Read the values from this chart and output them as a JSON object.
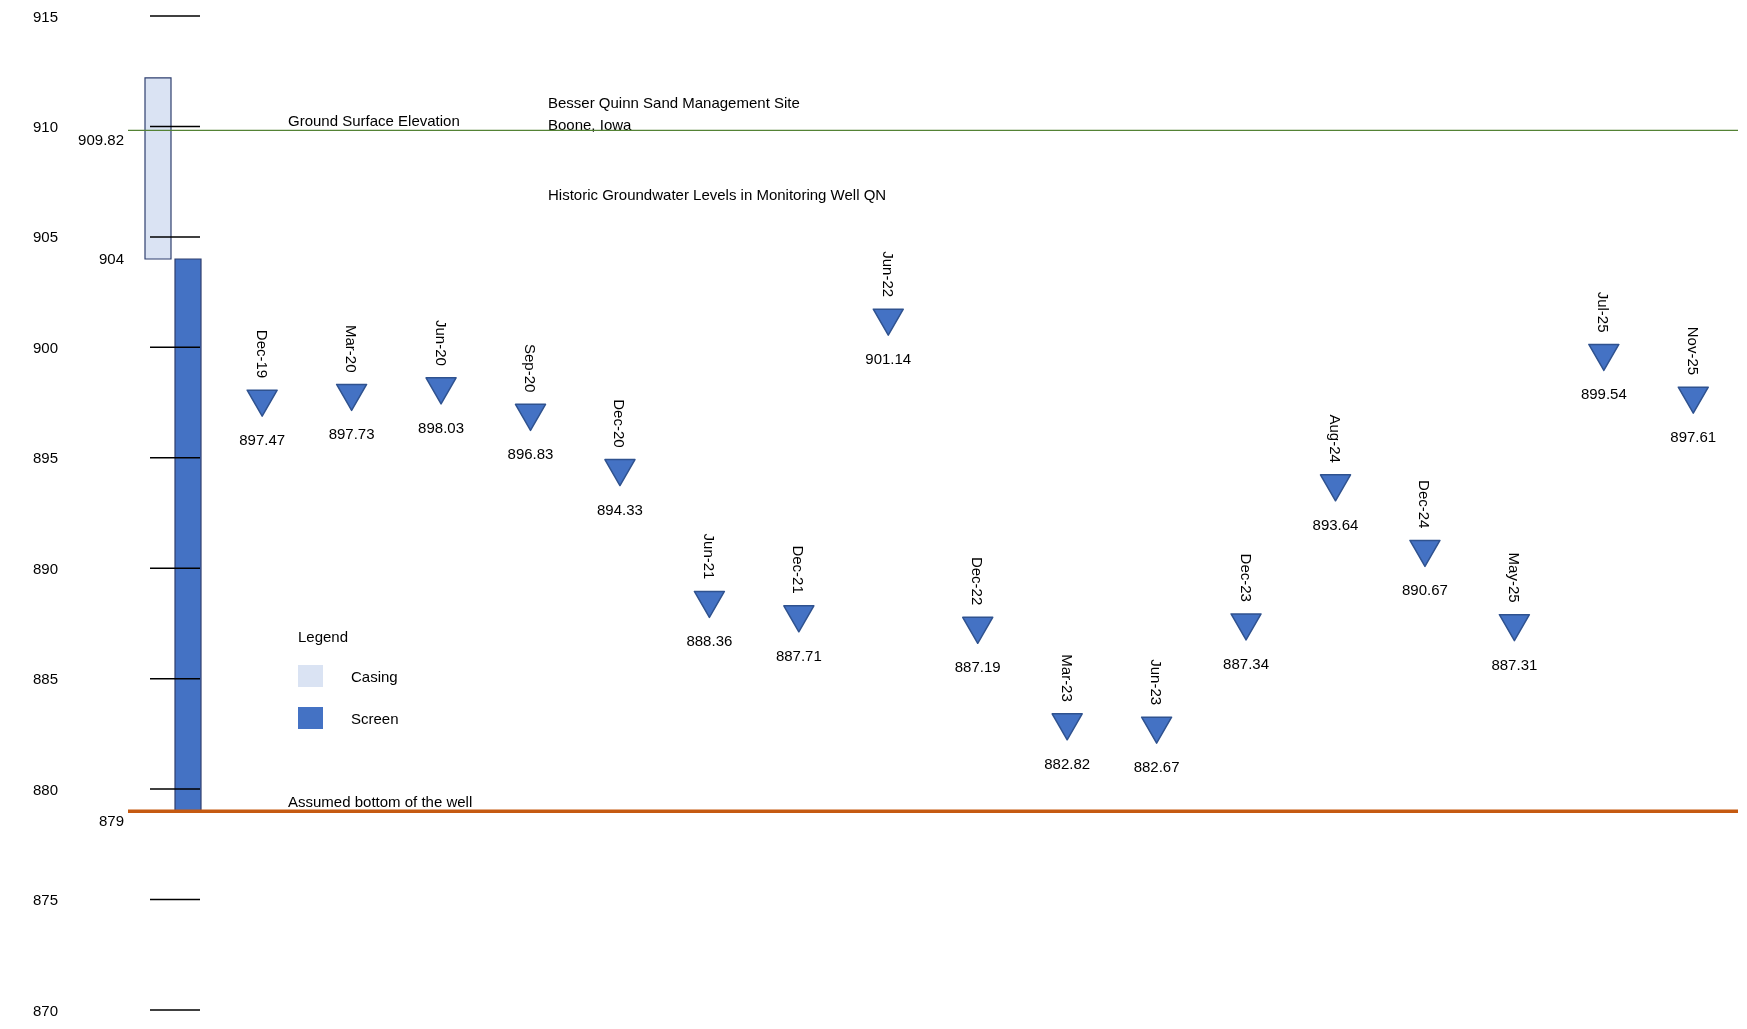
{
  "chart_data": {
    "type": "scatter",
    "title": "Besser Quinn Sand Management Site",
    "subtitle": "Boone, Iowa",
    "annotations": [
      "Historic Groundwater Levels in Monitoring Well QN",
      {
        "text": "Ground Surface Elevation",
        "y": 909.82
      },
      "904",
      {
        "text": "Assumed bottom of the well",
        "y": 879
      }
    ],
    "categories": [
      null,
      "Dec-19",
      "Mar-20",
      "Jun-20",
      "Sep-20",
      "Dec-20",
      "Jun-21",
      "Dec-21",
      "Jun-22",
      "Dec-22",
      "Mar-23",
      "Jun-23",
      "Dec-23",
      "Aug-24",
      "Dec-24",
      "May-25",
      "Jul-25",
      "Nov-25"
    ],
    "series": [
      {
        "name": "Casing",
        "type": "bar",
        "color": "#dae3f3",
        "base": [
          904,
          null,
          null,
          null,
          null,
          null,
          null,
          null,
          null,
          null,
          null,
          null,
          null,
          null,
          null,
          null,
          null,
          null
        ],
        "values": [
          8.2,
          null,
          null,
          null,
          null,
          null,
          null,
          null,
          null,
          null,
          null,
          null,
          null,
          null,
          null,
          null,
          null,
          null
        ]
      },
      {
        "name": "Screen",
        "type": "bar",
        "color": "#4472c4",
        "base": [
          879,
          null,
          null,
          null,
          null,
          null,
          null,
          null,
          null,
          null,
          null,
          null,
          null,
          null,
          null,
          null,
          null,
          null
        ],
        "values": [
          25,
          null,
          null,
          null,
          null,
          null,
          null,
          null,
          null,
          null,
          null,
          null,
          null,
          null,
          null,
          null,
          null,
          null
        ]
      },
      {
        "color": "#4472c4",
        "values": [
          null,
          897.47,
          897.73,
          898.03,
          896.83,
          894.33,
          888.36,
          887.71,
          901.14,
          887.19,
          882.82,
          882.67,
          887.34,
          893.64,
          890.67,
          887.31,
          899.54,
          897.61
        ],
        "value_labels": [
          null,
          "897.47",
          "897.73",
          "898.03",
          "896.83",
          "894.33",
          "888.36",
          "887.71",
          "901.14",
          "887.19",
          "882.82",
          "882.67",
          "887.34",
          "893.64",
          "890.67",
          "887.31",
          "899.54",
          "897.61"
        ]
      }
    ],
    "marker": "triangle",
    "grid": false,
    "tick_labels": "y",
    "legend": "bottom left",
    "legend_title": "Legend",
    "ylim": [
      870,
      915
    ],
    "yticks": [
      870,
      875,
      880,
      885,
      890,
      895,
      900,
      905,
      910,
      915
    ],
    "ref_lines": [
      {
        "axis": "y",
        "value": 909.82,
        "label": "909.82",
        "color": "#548235"
      },
      {
        "axis": "y",
        "value": 879,
        "label": "879",
        "color": "#c55a11"
      }
    ]
  }
}
